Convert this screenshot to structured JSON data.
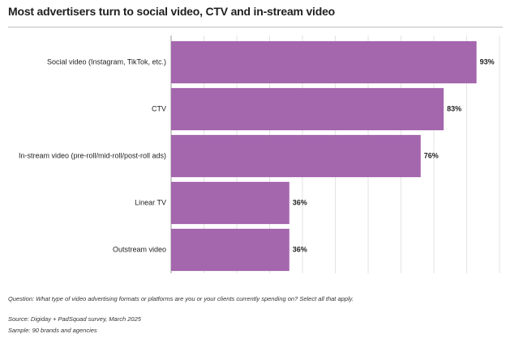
{
  "title": "Most advertisers turn to social video, CTV and in-stream video",
  "notes": {
    "question": "Question: What type of video advertising formats or platforms are you or your clients currently spending on? Select all that apply.",
    "source": "Source: Digiday + PadSquad survey, March 2025",
    "sample": "Sample: 90 brands and agencies"
  },
  "chart_data": {
    "type": "bar",
    "orientation": "horizontal",
    "categories": [
      "Social video (Instagram, TikTok, etc.)",
      "CTV",
      "In-stream video (pre-roll/mid-roll/post-roll ads)",
      "Linear TV",
      "Outstream video"
    ],
    "values": [
      93,
      83,
      76,
      36,
      36
    ],
    "value_labels": [
      "93%",
      "83%",
      "76%",
      "36%",
      "36%"
    ],
    "xlim": [
      0,
      100
    ],
    "grid": true,
    "bar_color": "#a466ad"
  }
}
